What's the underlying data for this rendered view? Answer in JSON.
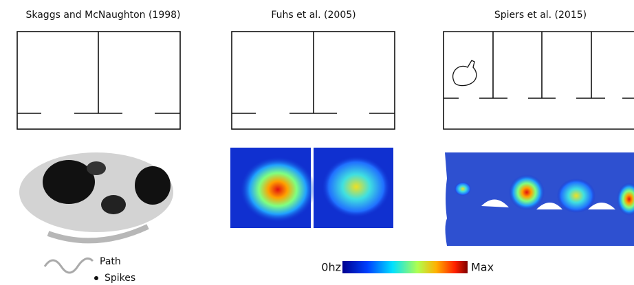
{
  "panels": [
    {
      "title": "Skaggs and McNaughton (1998)"
    },
    {
      "title": "Fuhs et al. (2005)"
    },
    {
      "title": "Spiers et al. (2015)"
    }
  ],
  "legend": {
    "path": "Path",
    "spikes": "Spikes"
  },
  "colorbar": {
    "min": "0hz",
    "max": "Max"
  }
}
